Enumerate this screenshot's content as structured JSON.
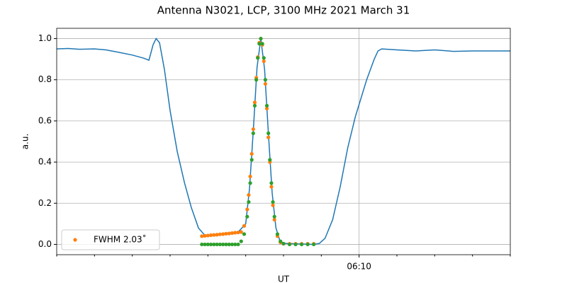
{
  "chart_data": {
    "type": "line",
    "title": "Antenna N3021, LCP, 3100 MHz 2021 March 31",
    "xlabel": "UT",
    "ylabel": "a.u.",
    "xlim": [
      2,
      14
    ],
    "ylim": [
      -0.05,
      1.05
    ],
    "xticks": [
      {
        "value": 10,
        "label": "06:10"
      }
    ],
    "xminorticks": [
      2,
      3,
      4,
      5,
      6,
      7,
      8,
      9,
      11,
      12,
      13,
      14
    ],
    "yticks": [
      {
        "value": 0,
        "label": "0.0"
      },
      0.2,
      0.4,
      0.6,
      0.8,
      {
        "value": 1,
        "label": "1.0"
      }
    ],
    "grid": true,
    "legend": "lower left",
    "series": [
      {
        "type": "line",
        "color": "#1f77b4",
        "x": [
          2.0,
          2.3,
          2.6,
          3.0,
          3.3,
          3.6,
          4.0,
          4.3,
          4.44,
          4.55,
          4.63,
          4.72,
          4.85,
          5.0,
          5.19,
          5.38,
          5.56,
          5.75,
          5.94,
          6.4,
          6.8,
          7.0,
          7.1,
          7.2,
          7.3,
          7.4,
          7.5,
          7.6,
          7.7,
          7.8,
          7.9,
          8.0,
          8.5,
          8.8,
          8.95,
          9.1,
          9.3,
          9.5,
          9.7,
          9.9,
          10.0,
          10.2,
          10.4,
          10.5,
          10.6,
          11.0,
          11.5,
          12.0,
          12.5,
          13.0,
          13.5,
          14.0
        ],
        "values": [
          0.95,
          0.952,
          0.948,
          0.95,
          0.945,
          0.935,
          0.92,
          0.905,
          0.895,
          0.97,
          1.0,
          0.98,
          0.85,
          0.65,
          0.45,
          0.3,
          0.18,
          0.08,
          0.04,
          0.05,
          0.06,
          0.1,
          0.27,
          0.55,
          0.86,
          1.0,
          0.85,
          0.54,
          0.25,
          0.08,
          0.02,
          0.005,
          0.002,
          0.0,
          0.005,
          0.03,
          0.12,
          0.28,
          0.47,
          0.62,
          0.68,
          0.8,
          0.9,
          0.94,
          0.95,
          0.945,
          0.94,
          0.945,
          0.938,
          0.94,
          0.94,
          0.94
        ]
      },
      {
        "type": "scatter",
        "color": "#ff7f0e",
        "name": "FWHM 2.03˚",
        "x": [
          5.84,
          5.92,
          6.0,
          6.08,
          6.16,
          6.24,
          6.32,
          6.4,
          6.48,
          6.56,
          6.64,
          6.72,
          6.8,
          6.88,
          6.96,
          7.04,
          7.08,
          7.12,
          7.16,
          7.2,
          7.24,
          7.28,
          7.32,
          7.36,
          7.4,
          7.44,
          7.48,
          7.52,
          7.56,
          7.6,
          7.64,
          7.68,
          7.72,
          7.76,
          7.84,
          7.92,
          8.0,
          8.16,
          8.32,
          8.48,
          8.64,
          8.8
        ],
        "values": [
          0.04,
          0.042,
          0.043,
          0.045,
          0.046,
          0.047,
          0.049,
          0.05,
          0.052,
          0.053,
          0.055,
          0.057,
          0.058,
          0.06,
          0.09,
          0.17,
          0.24,
          0.33,
          0.44,
          0.56,
          0.69,
          0.81,
          0.91,
          0.98,
          1.0,
          0.97,
          0.89,
          0.78,
          0.66,
          0.52,
          0.4,
          0.28,
          0.19,
          0.12,
          0.04,
          0.01,
          0.003,
          0.003,
          0.003,
          0.003,
          0.003,
          0.003
        ]
      },
      {
        "type": "scatter",
        "color": "#2ca02c",
        "x": [
          5.84,
          5.92,
          6.0,
          6.08,
          6.16,
          6.24,
          6.32,
          6.4,
          6.48,
          6.56,
          6.64,
          6.72,
          6.8,
          6.88,
          6.96,
          7.04,
          7.08,
          7.12,
          7.16,
          7.2,
          7.24,
          7.28,
          7.32,
          7.36,
          7.4,
          7.44,
          7.48,
          7.52,
          7.56,
          7.6,
          7.64,
          7.68,
          7.72,
          7.76,
          7.84,
          7.92,
          8.0,
          8.16,
          8.32,
          8.48,
          8.64,
          8.8
        ],
        "values": [
          0,
          0,
          0,
          0,
          0,
          0,
          0,
          0,
          0,
          0,
          0,
          0,
          0,
          0.015,
          0.05,
          0.135,
          0.206,
          0.298,
          0.411,
          0.54,
          0.674,
          0.8,
          0.906,
          0.975,
          1.0,
          0.975,
          0.906,
          0.8,
          0.674,
          0.54,
          0.411,
          0.298,
          0.206,
          0.135,
          0.05,
          0.015,
          0.004,
          0,
          0,
          0,
          0,
          0
        ]
      }
    ]
  }
}
